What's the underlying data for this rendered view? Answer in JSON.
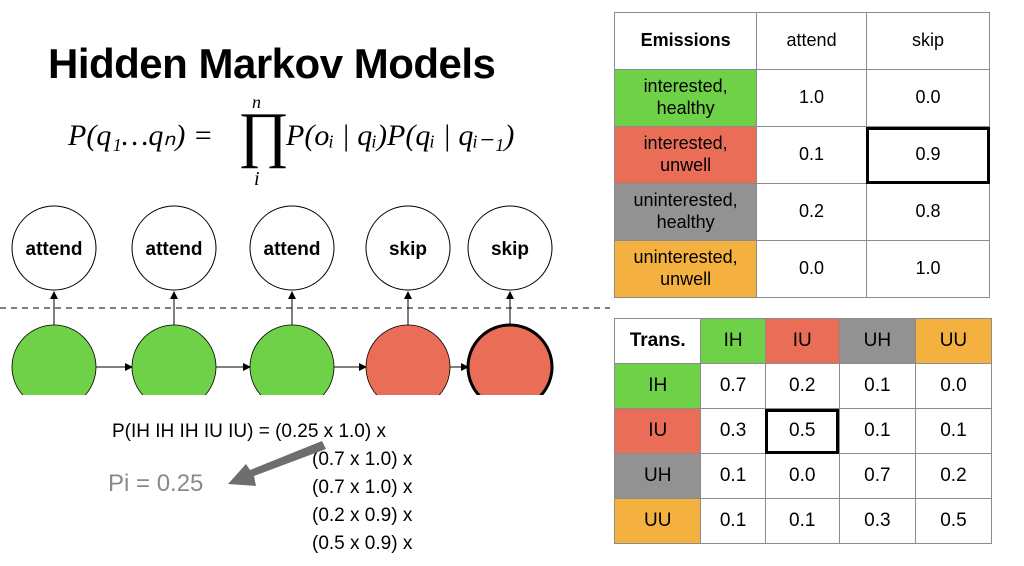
{
  "title": "Hidden Markov Models",
  "formula": {
    "lhs": "P(q₁…qₙ) =",
    "product_symbol": "∏",
    "upper": "n",
    "lower": "i",
    "rhs": "P(oᵢ | qᵢ)P(qᵢ | qᵢ₋₁)"
  },
  "observations": [
    "attend",
    "attend",
    "attend",
    "skip",
    "skip"
  ],
  "states": [
    {
      "state": "IH",
      "color": "#6fd148"
    },
    {
      "state": "IH",
      "color": "#6fd148"
    },
    {
      "state": "IH",
      "color": "#6fd148"
    },
    {
      "state": "IU",
      "color": "#ea6d58"
    },
    {
      "state": "IU",
      "color": "#ea6d58",
      "highlighted": true
    }
  ],
  "computation": {
    "lines": [
      "P(IH IH IH IU IU) = (0.25 x 1.0) x",
      "(0.7 x 1.0) x",
      "(0.7 x 1.0) x",
      "(0.2 x 0.9) x",
      "(0.5 x 0.9) x"
    ],
    "pi_label": "Pi = 0.25",
    "arrow_color": "#6e6e6e"
  },
  "colors": {
    "interested_healthy": "#6fd148",
    "interested_unwell": "#ea6d58",
    "uninterested_healthy": "#929292",
    "uninterested_unwell": "#f4b13f"
  },
  "emissions": {
    "header": [
      "Emissions",
      "attend",
      "skip"
    ],
    "rows": [
      {
        "label": "interested, healthy",
        "color": "#6fd148",
        "values": [
          "1.0",
          "0.0"
        ]
      },
      {
        "label": "interested, unwell",
        "color": "#ea6d58",
        "values": [
          "0.1",
          "0.9"
        ],
        "highlight_col": 1
      },
      {
        "label": "uninterested, healthy",
        "color": "#929292",
        "values": [
          "0.2",
          "0.8"
        ]
      },
      {
        "label": "uninterested, unwell",
        "color": "#f4b13f",
        "values": [
          "0.0",
          "1.0"
        ]
      }
    ]
  },
  "transitions": {
    "header": [
      {
        "label": "Trans.",
        "color": "#ffffff"
      },
      {
        "label": "IH",
        "color": "#6fd148"
      },
      {
        "label": "IU",
        "color": "#ea6d58"
      },
      {
        "label": "UH",
        "color": "#929292"
      },
      {
        "label": "UU",
        "color": "#f4b13f"
      }
    ],
    "rows": [
      {
        "label": "IH",
        "color": "#6fd148",
        "values": [
          "0.7",
          "0.2",
          "0.1",
          "0.0"
        ]
      },
      {
        "label": "IU",
        "color": "#ea6d58",
        "values": [
          "0.3",
          "0.5",
          "0.1",
          "0.1"
        ],
        "highlight_col": 1
      },
      {
        "label": "UH",
        "color": "#929292",
        "values": [
          "0.1",
          "0.0",
          "0.7",
          "0.2"
        ]
      },
      {
        "label": "UU",
        "color": "#f4b13f",
        "values": [
          "0.1",
          "0.1",
          "0.3",
          "0.5"
        ]
      }
    ]
  }
}
